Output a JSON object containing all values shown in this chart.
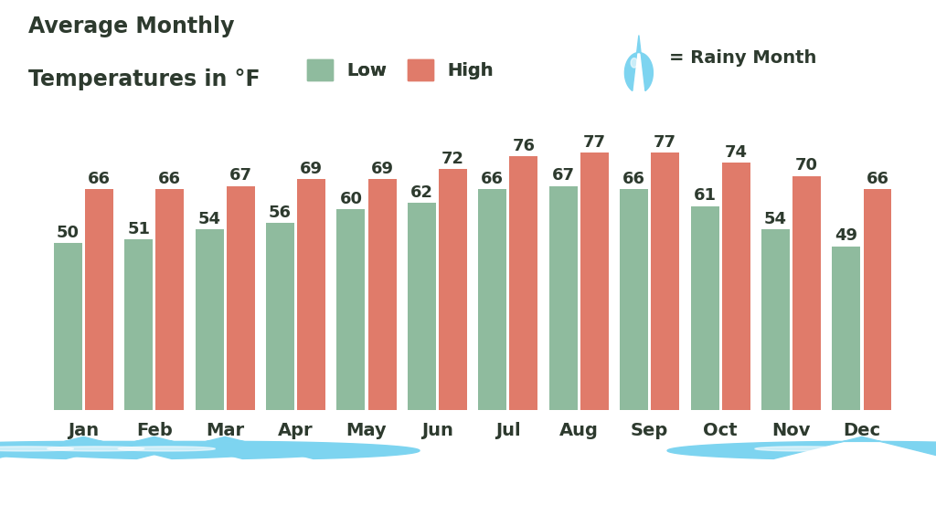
{
  "months": [
    "Jan",
    "Feb",
    "Mar",
    "Apr",
    "May",
    "Jun",
    "Jul",
    "Aug",
    "Sep",
    "Oct",
    "Nov",
    "Dec"
  ],
  "lows": [
    50,
    51,
    54,
    56,
    60,
    62,
    66,
    67,
    66,
    61,
    54,
    49
  ],
  "highs": [
    66,
    66,
    67,
    69,
    69,
    72,
    76,
    77,
    77,
    74,
    70,
    66
  ],
  "rainy_months": [
    0,
    1,
    2,
    11
  ],
  "low_color": "#8fbb9e",
  "high_color": "#e07b6a",
  "bg_color": "#ffffff",
  "title_line1": "Average Monthly",
  "title_line2": "Temperatures in °F",
  "title_fontsize": 17,
  "bar_label_fontsize": 13,
  "month_fontsize": 14,
  "legend_fontsize": 14,
  "text_color": "#2d3a2e",
  "rainy_color_light": "#7dd4f0",
  "rainy_color_dark": "#4ab8e8",
  "bar_width": 0.4,
  "bar_gap": 0.04
}
